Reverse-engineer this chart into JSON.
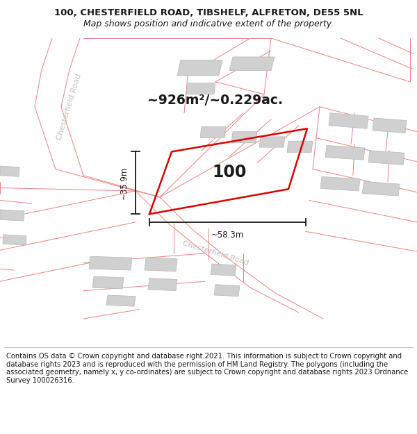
{
  "title_line1": "100, CHESTERFIELD ROAD, TIBSHELF, ALFRETON, DE55 5NL",
  "title_line2": "Map shows position and indicative extent of the property.",
  "area_text": "~926m²/~0.229ac.",
  "number_label": "100",
  "dim_width": "~58.3m",
  "dim_height": "~35.9m",
  "road_label_upper": "Chesterfield Road",
  "road_label_lower": "Chesterfield Road",
  "footer_text": "Contains OS data © Crown copyright and database right 2021. This information is subject to Crown copyright and database rights 2023 and is reproduced with the permission of HM Land Registry. The polygons (including the associated geometry, namely x, y co-ordinates) are subject to Crown copyright and database rights 2023 Ordnance Survey 100026316.",
  "bg_color": "#ffffff",
  "building_fill_color": "#d0d0d0",
  "road_line_color": "#f08080",
  "property_line_color": "#dd0000",
  "dim_line_color": "#1a1a1a",
  "text_color": "#1a1a1a",
  "road_text_color": "#c0c0c0",
  "title_fontsize": 9.5,
  "area_fontsize": 13.5,
  "number_fontsize": 17,
  "footer_fontsize": 7.2,
  "dim_fontsize": 8.5,
  "road_label_fontsize": 8.0
}
